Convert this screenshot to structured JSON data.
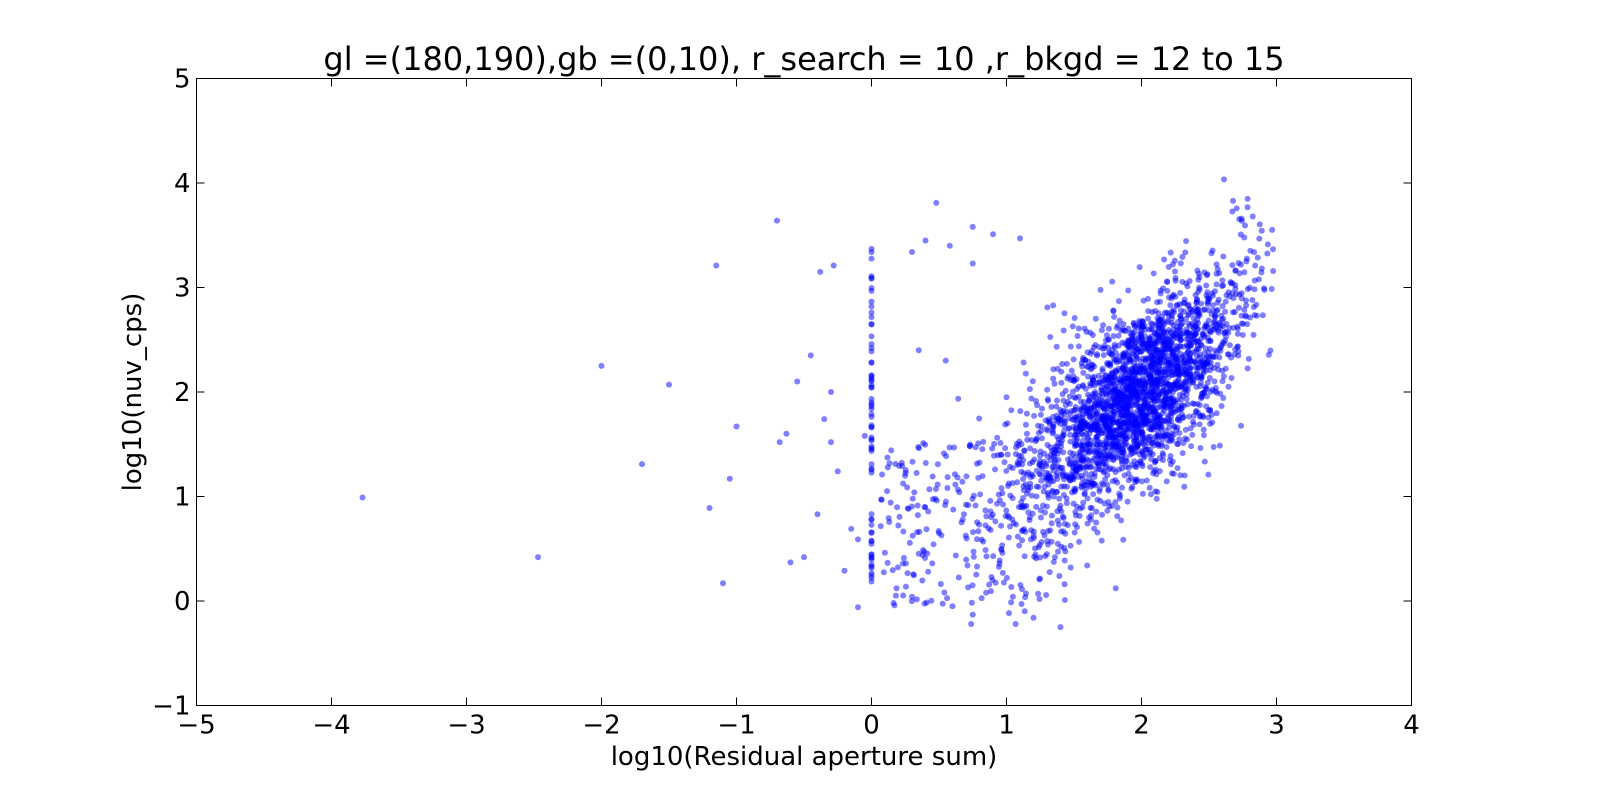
{
  "chart_data": {
    "type": "scatter",
    "title": "gl =(180,190),gb =(0,10), r_search = 10 ,r_bkgd = 12 to 15",
    "xlabel": "log10(Residual aperture sum)",
    "ylabel": "log10(nuv_cps)",
    "xlim": [
      -5,
      4
    ],
    "ylim": [
      -1,
      5
    ],
    "xticks": [
      -5,
      -4,
      -3,
      -2,
      -1,
      0,
      1,
      2,
      3,
      4
    ],
    "yticks": [
      -1,
      0,
      1,
      2,
      3,
      4,
      5
    ],
    "xtick_labels": [
      "−5",
      "−4",
      "−3",
      "−2",
      "−1",
      "0",
      "1",
      "2",
      "3",
      "4"
    ],
    "ytick_labels": [
      "−1",
      "0",
      "1",
      "2",
      "3",
      "4",
      "5"
    ],
    "grid": false,
    "marker_color": "#0000ff",
    "marker_alpha": 0.5,
    "series": [
      {
        "x": [
          -3.77,
          -2.47,
          -2.0,
          -1.7,
          -1.5,
          -1.2,
          -1.15,
          -1.05,
          -1.0,
          -1.1,
          -0.7,
          -0.68,
          -0.63,
          -0.6,
          -0.55,
          -0.5,
          -0.45,
          -0.4,
          -0.38,
          -0.35,
          -0.3,
          -0.3,
          -0.28,
          -0.25,
          -0.2,
          -0.15,
          -0.1,
          -0.05,
          -0.1,
          0.3,
          0.35,
          0.4,
          0.48,
          0.5,
          0.58,
          0.75,
          0.75,
          0.9,
          1.0,
          1.1,
          1.4,
          1.43,
          1.2,
          0.75,
          0.6,
          0.55
        ],
        "y": [
          0.99,
          0.42,
          2.25,
          1.31,
          2.07,
          0.89,
          3.21,
          1.17,
          1.67,
          0.17,
          3.64,
          1.52,
          1.6,
          0.37,
          2.1,
          0.42,
          2.35,
          0.83,
          3.15,
          1.74,
          1.52,
          2.0,
          3.21,
          1.24,
          0.29,
          0.69,
          0.59,
          1.58,
          -0.06,
          3.34,
          2.4,
          3.45,
          3.81,
          0.65,
          3.4,
          3.58,
          3.23,
          3.51,
          1.95,
          3.47,
          -0.25,
          0.16,
          -0.16,
          -0.13,
          -0.05,
          2.3
        ]
      }
    ]
  }
}
